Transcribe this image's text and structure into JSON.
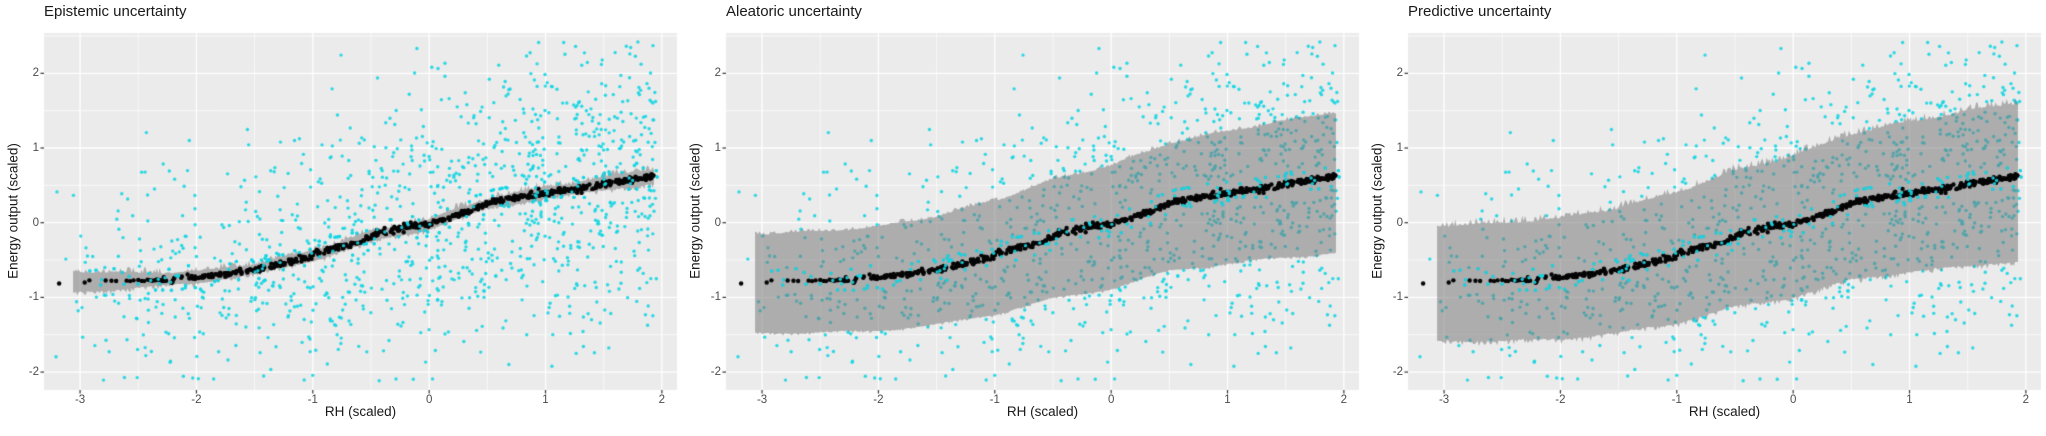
{
  "figure": {
    "background": "#FFFFFF",
    "panel_background": "#EBEBEB",
    "grid_color": "#FFFFFF",
    "tick_color": "#333333",
    "tick_label_color": "#4D4D4D",
    "text_color": "#1A1A1A"
  },
  "chart_data": [
    {
      "type": "scatter",
      "title": "Epistemic uncertainty",
      "xlabel": "RH (scaled)",
      "ylabel": "Energy output (scaled)",
      "xlim": [
        -3.31,
        2.13
      ],
      "ylim": [
        -2.24,
        2.54
      ],
      "x_ticks": [
        -3,
        -2,
        -1,
        0,
        1,
        2
      ],
      "y_ticks": [
        -2,
        -1,
        0,
        1,
        2
      ],
      "grid": "white major and minor gridlines on gray panel",
      "legend": "none",
      "series": [
        {
          "name": "observations",
          "type": "points",
          "color": "#17D6E3",
          "n_points": 1150,
          "x_range": [
            -3.22,
            2.0
          ],
          "y_range": [
            -2.1,
            2.45
          ],
          "note": "dense cyan cloud of observed points, denser for RH > -1, spread ~±1.5 around mean curve"
        },
        {
          "name": "mean_prediction",
          "type": "point-curve",
          "color": "#050505",
          "x": [
            -3.2,
            -3.0,
            -2.8,
            -2.6,
            -2.4,
            -2.2,
            -2.0,
            -1.8,
            -1.6,
            -1.4,
            -1.2,
            -1.0,
            -0.8,
            -0.6,
            -0.4,
            -0.2,
            0.0,
            0.1,
            0.3,
            0.5,
            0.7,
            0.9,
            1.1,
            1.3,
            1.5,
            1.7,
            1.9
          ],
          "y": [
            -0.8,
            -0.79,
            -0.78,
            -0.775,
            -0.77,
            -0.76,
            -0.73,
            -0.7,
            -0.66,
            -0.6,
            -0.52,
            -0.44,
            -0.33,
            -0.25,
            -0.12,
            -0.05,
            -0.02,
            0.03,
            0.13,
            0.26,
            0.32,
            0.38,
            0.42,
            0.46,
            0.52,
            0.56,
            0.62
          ],
          "note": "black dots, sparse for RH < -2.35, dense band above"
        },
        {
          "name": "epistemic_band",
          "type": "ribbon",
          "color": "rgba(122,122,122,0.55)",
          "edge_texture": "jagged",
          "spike_amp": 0.085,
          "x": [
            -3.0,
            -2.5,
            -2.0,
            -1.5,
            -1.0,
            -0.5,
            0.0,
            0.5,
            1.0,
            1.5,
            1.9
          ],
          "upper": [
            -0.66,
            -0.685,
            -0.66,
            -0.56,
            -0.38,
            -0.13,
            0.04,
            0.32,
            0.47,
            0.6,
            0.71
          ],
          "lower": [
            -0.92,
            -0.865,
            -0.8,
            -0.68,
            -0.5,
            -0.25,
            -0.08,
            0.2,
            0.33,
            0.44,
            0.53
          ]
        }
      ]
    },
    {
      "type": "scatter",
      "title": "Aleatoric uncertainty",
      "xlabel": "RH (scaled)",
      "ylabel": "Energy output (scaled)",
      "xlim": [
        -3.31,
        2.13
      ],
      "ylim": [
        -2.24,
        2.54
      ],
      "x_ticks": [
        -3,
        -2,
        -1,
        0,
        1,
        2
      ],
      "y_ticks": [
        -2,
        -1,
        0,
        1,
        2
      ],
      "grid": "white major and minor gridlines on gray panel",
      "legend": "none",
      "series": [
        {
          "name": "observations",
          "type": "points",
          "color": "#17D6E3",
          "n_points": 1150,
          "x_range": [
            -3.22,
            2.0
          ],
          "y_range": [
            -2.1,
            2.45
          ],
          "note": "same cyan cloud as left panel"
        },
        {
          "name": "mean_prediction",
          "type": "point-curve",
          "color": "#050505",
          "x": [
            -3.2,
            -3.0,
            -2.8,
            -2.6,
            -2.4,
            -2.2,
            -2.0,
            -1.8,
            -1.6,
            -1.4,
            -1.2,
            -1.0,
            -0.8,
            -0.6,
            -0.4,
            -0.2,
            0.0,
            0.1,
            0.3,
            0.5,
            0.7,
            0.9,
            1.1,
            1.3,
            1.5,
            1.7,
            1.9
          ],
          "y": [
            -0.8,
            -0.79,
            -0.78,
            -0.775,
            -0.77,
            -0.76,
            -0.73,
            -0.7,
            -0.66,
            -0.6,
            -0.52,
            -0.44,
            -0.33,
            -0.25,
            -0.12,
            -0.05,
            -0.02,
            0.03,
            0.13,
            0.26,
            0.32,
            0.38,
            0.42,
            0.46,
            0.52,
            0.56,
            0.62
          ]
        },
        {
          "name": "aleatoric_band",
          "type": "ribbon",
          "color": "rgba(122,122,122,0.55)",
          "edge_texture": "slightly jagged",
          "spike_amp": 0.05,
          "x": [
            -3.0,
            -2.5,
            -2.0,
            -1.5,
            -1.0,
            -0.5,
            0.0,
            0.5,
            1.0,
            1.5,
            1.9
          ],
          "upper": [
            -0.15,
            -0.125,
            -0.06,
            0.08,
            0.29,
            0.57,
            0.76,
            1.06,
            1.22,
            1.36,
            1.47
          ],
          "lower": [
            -1.47,
            -1.465,
            -1.44,
            -1.36,
            -1.22,
            -1.01,
            -0.88,
            -0.64,
            -0.54,
            -0.46,
            -0.4
          ]
        }
      ]
    },
    {
      "type": "scatter",
      "title": "Predictive uncertainty",
      "xlabel": "RH (scaled)",
      "ylabel": "Energy output (scaled)",
      "xlim": [
        -3.31,
        2.13
      ],
      "ylim": [
        -2.24,
        2.54
      ],
      "x_ticks": [
        -3,
        -2,
        -1,
        0,
        1,
        2
      ],
      "y_ticks": [
        -2,
        -1,
        0,
        1,
        2
      ],
      "grid": "white major and minor gridlines on gray panel",
      "legend": "none",
      "series": [
        {
          "name": "observations",
          "type": "points",
          "color": "#17D6E3",
          "n_points": 1150,
          "x_range": [
            -3.22,
            2.0
          ],
          "y_range": [
            -2.1,
            2.45
          ],
          "note": "same cyan cloud as left panel"
        },
        {
          "name": "mean_prediction",
          "type": "point-curve",
          "color": "#050505",
          "x": [
            -3.2,
            -3.0,
            -2.8,
            -2.6,
            -2.4,
            -2.2,
            -2.0,
            -1.8,
            -1.6,
            -1.4,
            -1.2,
            -1.0,
            -0.8,
            -0.6,
            -0.4,
            -0.2,
            0.0,
            0.1,
            0.3,
            0.5,
            0.7,
            0.9,
            1.1,
            1.3,
            1.5,
            1.7,
            1.9
          ],
          "y": [
            -0.8,
            -0.79,
            -0.78,
            -0.775,
            -0.77,
            -0.76,
            -0.73,
            -0.7,
            -0.66,
            -0.6,
            -0.52,
            -0.44,
            -0.33,
            -0.25,
            -0.12,
            -0.05,
            -0.02,
            0.03,
            0.13,
            0.26,
            0.32,
            0.38,
            0.42,
            0.46,
            0.52,
            0.56,
            0.62
          ]
        },
        {
          "name": "predictive_band",
          "type": "ribbon",
          "color": "rgba(122,122,122,0.55)",
          "edge_texture": "very jagged top edge",
          "spike_amp": 0.1,
          "x": [
            -3.0,
            -2.5,
            -2.0,
            -1.5,
            -1.0,
            -0.5,
            0.0,
            0.5,
            1.0,
            1.5,
            1.9
          ],
          "upper": [
            -0.05,
            -0.015,
            0.05,
            0.19,
            0.4,
            0.68,
            0.88,
            1.18,
            1.34,
            1.48,
            1.59
          ],
          "lower": [
            -1.57,
            -1.575,
            -1.55,
            -1.47,
            -1.33,
            -1.12,
            -0.99,
            -0.75,
            -0.65,
            -0.57,
            -0.51
          ]
        }
      ]
    }
  ]
}
